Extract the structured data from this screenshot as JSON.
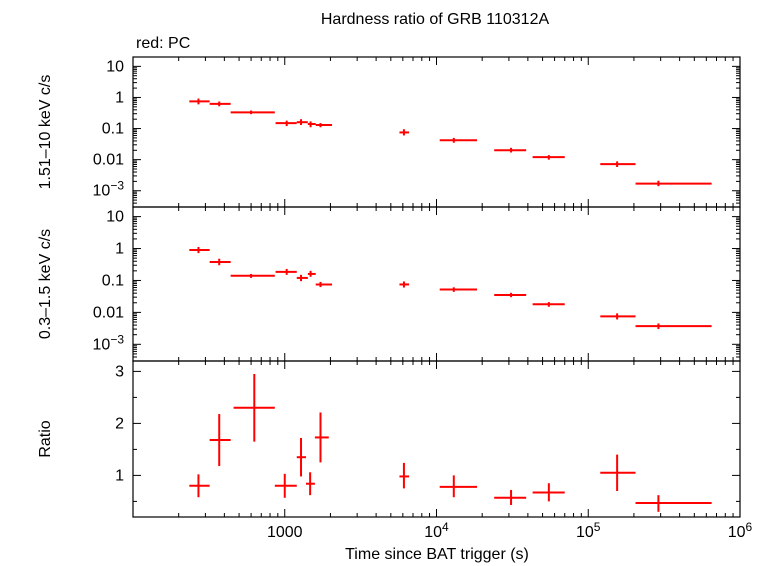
{
  "chart_data": {
    "type": "scatter",
    "title": "Hardness ratio of GRB 110312A",
    "subtitle": "red: PC",
    "xlabel": "Time since BAT trigger (s)",
    "x_scale": "log",
    "xlim": [
      100,
      1000000
    ],
    "x_ticks": [
      {
        "value": 1000,
        "label": "1000"
      },
      {
        "value": 10000,
        "label": "10",
        "exp": "4"
      },
      {
        "value": 100000,
        "label": "10",
        "exp": "5"
      },
      {
        "value": 1000000,
        "label": "10",
        "exp": "6"
      }
    ],
    "color": "#ff0000",
    "panels": [
      {
        "id": "hard",
        "ylabel": "1.51–10 keV c/s",
        "y_scale": "log",
        "ylim": [
          0.0003,
          20
        ],
        "y_ticks": [
          {
            "value": 10,
            "label": "10"
          },
          {
            "value": 1,
            "label": "1"
          },
          {
            "value": 0.1,
            "label": "0.1"
          },
          {
            "value": 0.01,
            "label": "0.01"
          },
          {
            "value": 0.001,
            "label": "10",
            "exp": "−3"
          }
        ],
        "points": [
          {
            "x": 270,
            "xlo": 235,
            "xhi": 320,
            "y": 0.75,
            "ylo": 0.6,
            "yhi": 0.92
          },
          {
            "x": 370,
            "xlo": 320,
            "xhi": 440,
            "y": 0.62,
            "ylo": 0.52,
            "yhi": 0.74
          },
          {
            "x": 600,
            "xlo": 440,
            "xhi": 860,
            "y": 0.33,
            "ylo": 0.29,
            "yhi": 0.38
          },
          {
            "x": 1030,
            "xlo": 870,
            "xhi": 1200,
            "y": 0.15,
            "ylo": 0.12,
            "yhi": 0.18
          },
          {
            "x": 1280,
            "xlo": 1200,
            "xhi": 1420,
            "y": 0.16,
            "ylo": 0.13,
            "yhi": 0.2
          },
          {
            "x": 1480,
            "xlo": 1420,
            "xhi": 1600,
            "y": 0.14,
            "ylo": 0.11,
            "yhi": 0.17
          },
          {
            "x": 1720,
            "xlo": 1600,
            "xhi": 2050,
            "y": 0.13,
            "ylo": 0.11,
            "yhi": 0.15
          },
          {
            "x": 6100,
            "xlo": 5700,
            "xhi": 6600,
            "y": 0.075,
            "ylo": 0.06,
            "yhi": 0.095
          },
          {
            "x": 13000,
            "xlo": 10500,
            "xhi": 18500,
            "y": 0.042,
            "ylo": 0.035,
            "yhi": 0.05
          },
          {
            "x": 31000,
            "xlo": 24000,
            "xhi": 39000,
            "y": 0.02,
            "ylo": 0.017,
            "yhi": 0.024
          },
          {
            "x": 55000,
            "xlo": 43000,
            "xhi": 70000,
            "y": 0.012,
            "ylo": 0.01,
            "yhi": 0.014
          },
          {
            "x": 155000,
            "xlo": 120000,
            "xhi": 205000,
            "y": 0.0072,
            "ylo": 0.0058,
            "yhi": 0.0088
          },
          {
            "x": 290000,
            "xlo": 205000,
            "xhi": 650000,
            "y": 0.0017,
            "ylo": 0.0014,
            "yhi": 0.0021
          }
        ]
      },
      {
        "id": "soft",
        "ylabel": "0.3–1.5 keV c/s",
        "y_scale": "log",
        "ylim": [
          0.0003,
          20
        ],
        "y_ticks": [
          {
            "value": 10,
            "label": "10"
          },
          {
            "value": 1,
            "label": "1"
          },
          {
            "value": 0.1,
            "label": "0.1"
          },
          {
            "value": 0.01,
            "label": "0.01"
          },
          {
            "value": 0.001,
            "label": "10",
            "exp": "−3"
          }
        ],
        "points": [
          {
            "x": 270,
            "xlo": 235,
            "xhi": 320,
            "y": 0.9,
            "ylo": 0.72,
            "yhi": 1.12
          },
          {
            "x": 370,
            "xlo": 320,
            "xhi": 440,
            "y": 0.38,
            "ylo": 0.3,
            "yhi": 0.48
          },
          {
            "x": 600,
            "xlo": 440,
            "xhi": 860,
            "y": 0.14,
            "ylo": 0.12,
            "yhi": 0.16
          },
          {
            "x": 1030,
            "xlo": 870,
            "xhi": 1200,
            "y": 0.185,
            "ylo": 0.15,
            "yhi": 0.23
          },
          {
            "x": 1280,
            "xlo": 1200,
            "xhi": 1420,
            "y": 0.12,
            "ylo": 0.095,
            "yhi": 0.15
          },
          {
            "x": 1480,
            "xlo": 1420,
            "xhi": 1600,
            "y": 0.16,
            "ylo": 0.13,
            "yhi": 0.2
          },
          {
            "x": 1720,
            "xlo": 1600,
            "xhi": 2050,
            "y": 0.075,
            "ylo": 0.062,
            "yhi": 0.09
          },
          {
            "x": 6100,
            "xlo": 5700,
            "xhi": 6600,
            "y": 0.075,
            "ylo": 0.06,
            "yhi": 0.093
          },
          {
            "x": 13000,
            "xlo": 10500,
            "xhi": 18500,
            "y": 0.052,
            "ylo": 0.044,
            "yhi": 0.061
          },
          {
            "x": 31000,
            "xlo": 24000,
            "xhi": 39000,
            "y": 0.035,
            "ylo": 0.03,
            "yhi": 0.041
          },
          {
            "x": 55000,
            "xlo": 43000,
            "xhi": 70000,
            "y": 0.018,
            "ylo": 0.015,
            "yhi": 0.021
          },
          {
            "x": 155000,
            "xlo": 120000,
            "xhi": 205000,
            "y": 0.0075,
            "ylo": 0.006,
            "yhi": 0.0093
          },
          {
            "x": 290000,
            "xlo": 205000,
            "xhi": 650000,
            "y": 0.0037,
            "ylo": 0.003,
            "yhi": 0.0045
          }
        ]
      },
      {
        "id": "ratio",
        "ylabel": "Ratio",
        "y_scale": "linear",
        "ylim": [
          0.2,
          3.2
        ],
        "y_ticks": [
          {
            "value": 1,
            "label": "1"
          },
          {
            "value": 2,
            "label": "2"
          },
          {
            "value": 3,
            "label": "3"
          }
        ],
        "points": [
          {
            "x": 270,
            "xlo": 235,
            "xhi": 320,
            "y": 0.8,
            "ylo": 0.58,
            "yhi": 1.02
          },
          {
            "x": 370,
            "xlo": 320,
            "xhi": 440,
            "y": 1.68,
            "ylo": 1.18,
            "yhi": 2.18
          },
          {
            "x": 630,
            "xlo": 460,
            "xhi": 860,
            "y": 2.3,
            "ylo": 1.65,
            "yhi": 2.95
          },
          {
            "x": 1000,
            "xlo": 860,
            "xhi": 1200,
            "y": 0.8,
            "ylo": 0.57,
            "yhi": 1.03
          },
          {
            "x": 1280,
            "xlo": 1200,
            "xhi": 1380,
            "y": 1.35,
            "ylo": 0.98,
            "yhi": 1.72
          },
          {
            "x": 1470,
            "xlo": 1380,
            "xhi": 1580,
            "y": 0.84,
            "ylo": 0.62,
            "yhi": 1.06
          },
          {
            "x": 1720,
            "xlo": 1580,
            "xhi": 1950,
            "y": 1.73,
            "ylo": 1.25,
            "yhi": 2.21
          },
          {
            "x": 6100,
            "xlo": 5700,
            "xhi": 6600,
            "y": 0.98,
            "ylo": 0.75,
            "yhi": 1.24
          },
          {
            "x": 13000,
            "xlo": 10500,
            "xhi": 18500,
            "y": 0.78,
            "ylo": 0.58,
            "yhi": 1.0
          },
          {
            "x": 31000,
            "xlo": 24000,
            "xhi": 39000,
            "y": 0.57,
            "ylo": 0.43,
            "yhi": 0.72
          },
          {
            "x": 55000,
            "xlo": 43000,
            "xhi": 70000,
            "y": 0.67,
            "ylo": 0.5,
            "yhi": 0.85
          },
          {
            "x": 155000,
            "xlo": 120000,
            "xhi": 205000,
            "y": 1.05,
            "ylo": 0.7,
            "yhi": 1.4
          },
          {
            "x": 290000,
            "xlo": 205000,
            "xhi": 650000,
            "y": 0.47,
            "ylo": 0.3,
            "yhi": 0.62
          }
        ]
      }
    ]
  }
}
